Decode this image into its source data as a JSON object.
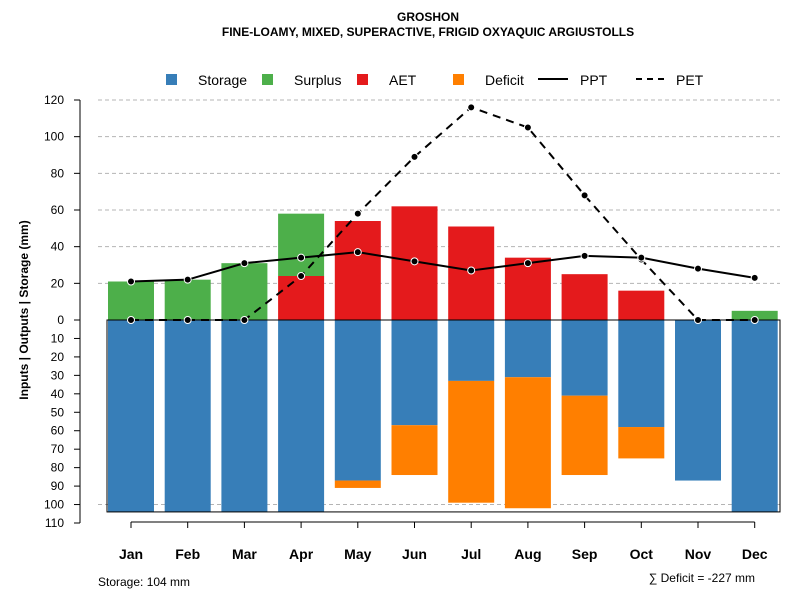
{
  "chart_data": {
    "type": "bar",
    "title": "GROSHON",
    "subtitle": "FINE-LOAMY, MIXED, SUPERACTIVE, FRIGID OXYAQUIC ARGIUSTOLLS",
    "ylabel": "Inputs | Outputs | Storage    (mm)",
    "categories": [
      "Jan",
      "Feb",
      "Mar",
      "Apr",
      "May",
      "Jun",
      "Jul",
      "Aug",
      "Sep",
      "Oct",
      "Nov",
      "Dec"
    ],
    "upper_ticks": [
      "120",
      "100",
      "80",
      "60",
      "40",
      "20",
      "0"
    ],
    "lower_ticks": [
      "10",
      "20",
      "30",
      "40",
      "50",
      "60",
      "70",
      "80",
      "90",
      "100",
      "110"
    ],
    "ylim_upper": [
      0,
      120
    ],
    "ylim_lower": [
      0,
      110
    ],
    "series": [
      {
        "name": "Storage",
        "color": "#377eb8",
        "values": [
          104,
          104,
          104,
          104,
          87,
          57,
          33,
          31,
          41,
          58,
          87,
          104
        ]
      },
      {
        "name": "Surplus",
        "color": "#4daf4a",
        "values": [
          21,
          22,
          31,
          34,
          0,
          0,
          0,
          0,
          0,
          0,
          0,
          5
        ]
      },
      {
        "name": "AET",
        "color": "#e41a1c",
        "values": [
          0,
          0,
          0,
          24,
          54,
          62,
          51,
          34,
          25,
          16,
          0,
          0
        ]
      },
      {
        "name": "Deficit",
        "color": "#ff7f00",
        "values": [
          0,
          0,
          0,
          0,
          4,
          27,
          66,
          71,
          43,
          17,
          0,
          0
        ]
      },
      {
        "name": "PPT",
        "color": "#000000",
        "values": [
          21,
          22,
          31,
          34,
          37,
          32,
          27,
          31,
          35,
          34,
          28,
          23
        ]
      },
      {
        "name": "PET",
        "color": "#000000",
        "values": [
          0,
          0,
          0,
          24,
          58,
          89,
          116,
          105,
          68,
          33,
          0,
          0
        ]
      }
    ],
    "legend": [
      "Storage",
      "Surplus",
      "AET",
      "Deficit",
      "PPT",
      "PET"
    ],
    "storage_note": "Storage: 104 mm",
    "deficit_note": "∑ Deficit = -227 mm"
  }
}
